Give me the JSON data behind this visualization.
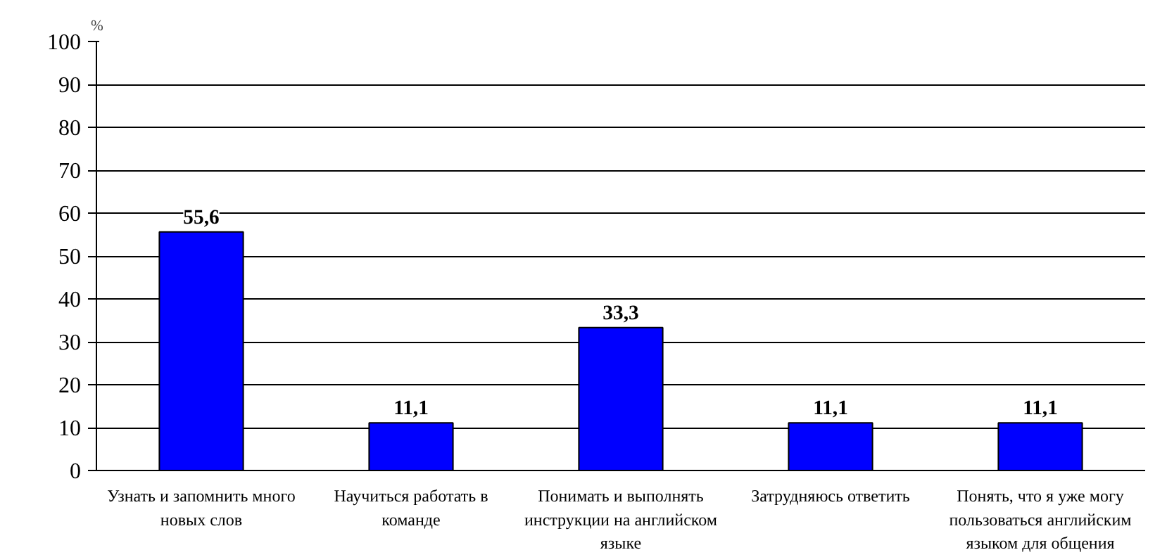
{
  "chart_data": {
    "type": "bar",
    "ylabel": "%",
    "categories": [
      "Узнать и запомнить много новых слов",
      "Научиться работать в команде",
      "Понимать и выполнять инструкции на английском языке",
      "Затрудняюсь ответить",
      "Понять, что я уже могу пользоваться английским языком для общения"
    ],
    "values": [
      55.6,
      11.1,
      33.3,
      11.1,
      11.1
    ],
    "value_labels": [
      "55,6",
      "11,1",
      "33,3",
      "11,1",
      "11,1"
    ],
    "color": "#0000ff",
    "ylim": [
      0,
      100
    ],
    "yticks": [
      0,
      10,
      20,
      30,
      40,
      50,
      60,
      70,
      80,
      90,
      100
    ],
    "grid": "y"
  }
}
